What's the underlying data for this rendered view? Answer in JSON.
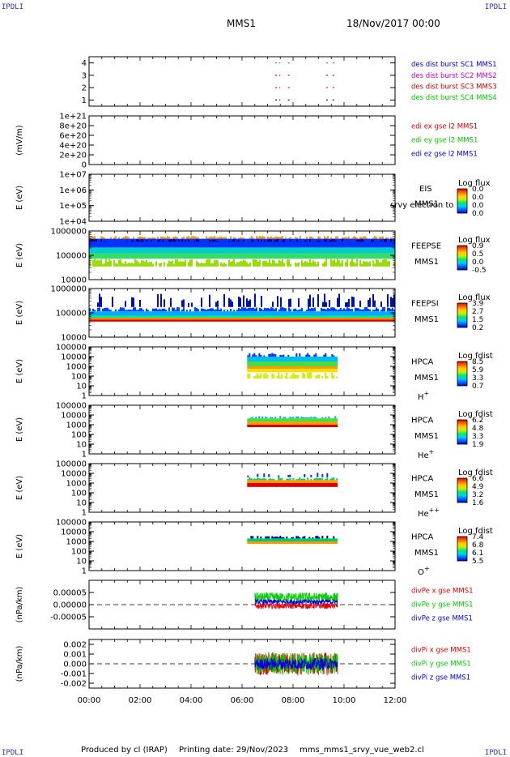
{
  "header": {
    "corner_tl": "IPDLI",
    "corner_tr": "IPDLI",
    "corner_bl": "IPDLI",
    "corner_br": "IPDLI",
    "spacecraft": "MMS1",
    "date": "18/Nov/2017 00:00"
  },
  "footer": {
    "produced": "Produced by cl (IRAP)",
    "printed": "Printing date: 29/Nov/2023",
    "file": "mms_mms1_srvy_vue_web2.cl"
  },
  "colors": {
    "red": "#e00000",
    "green": "#00cc00",
    "blue": "#0000dd",
    "magenta": "#cc00cc",
    "darkred": "#cc0000",
    "darkblue": "#000080"
  },
  "chart_data": {
    "type": "heatmap",
    "x_axis": {
      "range": [
        "00:00",
        "12:00"
      ],
      "tick_labels": [
        "00:00",
        "02:00",
        "04:00",
        "06:00",
        "08:00",
        "10:00",
        "12:00"
      ]
    },
    "panels": [
      {
        "id": "burst",
        "kind": "flags",
        "y_ticks": [
          "1",
          "2",
          "3",
          "4"
        ],
        "ylim": [
          0.5,
          4.5
        ],
        "legend": [
          {
            "text": "des dist burst SC1 MMS1",
            "color": "#0000dd"
          },
          {
            "text": "des dist burst SC2 MMS2",
            "color": "#cc00cc"
          },
          {
            "text": "des dist burst SC3 MMS3",
            "color": "#cc0000"
          },
          {
            "text": "des dist burst SC4 MMS4",
            "color": "#00cc00"
          }
        ],
        "series": [
          {
            "name": "SC1",
            "level": 1,
            "intervals": [
              [
                7.3,
                7.5
              ],
              [
                7.8,
                7.9
              ],
              [
                9.3,
                9.4
              ],
              [
                9.55,
                9.65
              ]
            ]
          },
          {
            "name": "SC2",
            "level": 2,
            "intervals": [
              [
                7.3,
                7.5
              ],
              [
                7.8,
                7.9
              ],
              [
                9.3,
                9.4
              ],
              [
                9.55,
                9.65
              ]
            ]
          },
          {
            "name": "SC3",
            "level": 3,
            "intervals": [
              [
                7.3,
                7.5
              ],
              [
                7.8,
                7.9
              ],
              [
                9.3,
                9.4
              ],
              [
                9.55,
                9.65
              ]
            ]
          },
          {
            "name": "SC4",
            "level": 4,
            "intervals": [
              [
                7.3,
                7.5
              ],
              [
                7.8,
                7.9
              ],
              [
                9.3,
                9.4
              ],
              [
                9.55,
                9.65
              ]
            ]
          }
        ]
      },
      {
        "id": "edi",
        "kind": "lines",
        "ylabel": "(mV/m)",
        "y_ticks": [
          "0",
          "2e+20",
          "4e+20",
          "6e+20",
          "8e+20",
          "1e+21"
        ],
        "ylim": [
          0,
          1e+21
        ],
        "zero_line": true,
        "legend": [
          {
            "text": "edi ex gse l2 MMS1",
            "color": "#e00000"
          },
          {
            "text": "edi ey gse l2 MMS1",
            "color": "#00cc00"
          },
          {
            "text": "edi ez gse l2 MMS1",
            "color": "#0000dd"
          }
        ]
      },
      {
        "id": "eis",
        "kind": "spectrogram",
        "ylabel": "E (eV)",
        "y_ticks": [
          "1e+04",
          "1e+05",
          "1e+06",
          "1e+07"
        ],
        "labels": [
          "EIS",
          "MMS1"
        ],
        "overlay_text": "srvy electron to",
        "colorbar": {
          "title": "Log flux",
          "ticks": [
            "0.0",
            "0.0",
            "0.0",
            "0.0"
          ]
        },
        "bands": []
      },
      {
        "id": "feepse",
        "kind": "spectrogram",
        "ylabel": "E (eV)",
        "y_ticks": [
          "10000",
          "100000",
          "1000000"
        ],
        "labels": [
          "FEEPSE",
          "MMS1"
        ],
        "colorbar": {
          "title": "Log flux",
          "ticks": [
            "0.9",
            "0.5",
            "0.0",
            "-0.5"
          ]
        },
        "bands": [
          {
            "t0": 0.0,
            "t1": 12.0,
            "y0": 0.84,
            "y1": 0.9,
            "color": "#ff9900",
            "density": 0.7
          },
          {
            "t0": 0.0,
            "t1": 12.0,
            "y0": 0.66,
            "y1": 0.84,
            "color": "#0033ff"
          },
          {
            "t0": 0.0,
            "t1": 12.0,
            "y0": 0.54,
            "y1": 0.66,
            "color": "#00cccc"
          },
          {
            "t0": 0.0,
            "t1": 12.0,
            "y0": 0.43,
            "y1": 0.54,
            "color": "#33dd66"
          },
          {
            "t0": 0.0,
            "t1": 12.0,
            "y0": 0.27,
            "y1": 0.43,
            "color": "#99dd00",
            "density": 0.85
          },
          {
            "t0": 0.0,
            "t1": 12.0,
            "y0": 0.78,
            "y1": 0.84,
            "color": "#1a0080",
            "density": 0.4
          }
        ]
      },
      {
        "id": "feepsi",
        "kind": "spectrogram",
        "ylabel": "E (eV)",
        "y_ticks": [
          "10000",
          "100000",
          "1000000"
        ],
        "labels": [
          "FEEPSI",
          "MMS1"
        ],
        "colorbar": {
          "title": "Log flux",
          "ticks": [
            "3.9",
            "2.7",
            "1.5",
            "0.2"
          ]
        },
        "bands": [
          {
            "t0": 0.0,
            "t1": 12.0,
            "y0": 0.62,
            "y1": 0.9,
            "color": "#0011aa",
            "density": 0.35
          },
          {
            "t0": 0.0,
            "t1": 12.0,
            "y0": 0.53,
            "y1": 0.62,
            "color": "#0044ff",
            "density": 0.8
          },
          {
            "t0": 0.0,
            "t1": 12.0,
            "y0": 0.44,
            "y1": 0.53,
            "color": "#00aaff"
          },
          {
            "t0": 0.0,
            "t1": 12.0,
            "y0": 0.4,
            "y1": 0.44,
            "color": "#00ee88"
          },
          {
            "t0": 0.0,
            "t1": 12.0,
            "y0": 0.36,
            "y1": 0.4,
            "color": "#ff8800"
          },
          {
            "t0": 0.0,
            "t1": 12.0,
            "y0": 0.32,
            "y1": 0.36,
            "color": "#dd0000"
          }
        ]
      },
      {
        "id": "hpca_h",
        "kind": "spectrogram",
        "ylabel": "E (eV)",
        "y_ticks": [
          "1",
          "10",
          "100",
          "1000",
          "10000",
          "100000"
        ],
        "labels": [
          "HPCA",
          "MMS1",
          "H+"
        ],
        "colorbar": {
          "title": "Log fdist",
          "ticks": [
            "8.5",
            "5.9",
            "3.3",
            "0.7"
          ]
        },
        "bands": [
          {
            "t0": 6.2,
            "t1": 9.75,
            "y0": 0.8,
            "y1": 0.88,
            "color": "#0033ff",
            "density": 0.5
          },
          {
            "t0": 6.2,
            "t1": 9.75,
            "y0": 0.7,
            "y1": 0.8,
            "color": "#00bbee"
          },
          {
            "t0": 6.2,
            "t1": 9.75,
            "y0": 0.6,
            "y1": 0.7,
            "color": "#44dd44"
          },
          {
            "t0": 6.2,
            "t1": 9.75,
            "y0": 0.55,
            "y1": 0.6,
            "color": "#ff9900"
          },
          {
            "t0": 6.2,
            "t1": 9.75,
            "y0": 0.48,
            "y1": 0.55,
            "color": "#ffdd00"
          },
          {
            "t0": 6.2,
            "t1": 9.75,
            "y0": 0.35,
            "y1": 0.48,
            "color": "#ccee00",
            "density": 0.7
          }
        ]
      },
      {
        "id": "hpca_he",
        "kind": "spectrogram",
        "ylabel": "E (eV)",
        "y_ticks": [
          "1",
          "10",
          "100",
          "1000",
          "10000",
          "100000"
        ],
        "labels": [
          "HPCA",
          "MMS1",
          "He+"
        ],
        "colorbar": {
          "title": "Log fdist",
          "ticks": [
            "6.2",
            "4.8",
            "3.3",
            "1.9"
          ]
        },
        "bands": [
          {
            "t0": 6.2,
            "t1": 9.75,
            "y0": 0.73,
            "y1": 0.78,
            "color": "#00aacc",
            "density": 0.6
          },
          {
            "t0": 6.2,
            "t1": 9.75,
            "y0": 0.66,
            "y1": 0.73,
            "color": "#44dd44"
          },
          {
            "t0": 6.2,
            "t1": 9.75,
            "y0": 0.6,
            "y1": 0.66,
            "color": "#ff9900"
          },
          {
            "t0": 6.2,
            "t1": 9.75,
            "y0": 0.55,
            "y1": 0.6,
            "color": "#dd0000"
          }
        ]
      },
      {
        "id": "hpca_hepp",
        "kind": "spectrogram",
        "ylabel": "E (eV)",
        "y_ticks": [
          "1",
          "10",
          "100",
          "1000",
          "10000",
          "100000"
        ],
        "labels": [
          "HPCA",
          "MMS1",
          "He++"
        ],
        "colorbar": {
          "title": "Log fdist",
          "ticks": [
            "6.6",
            "4.9",
            "3.2",
            "1.6"
          ]
        },
        "bands": [
          {
            "t0": 6.2,
            "t1": 9.75,
            "y0": 0.72,
            "y1": 0.82,
            "color": "#0033ff",
            "density": 0.3
          },
          {
            "t0": 6.2,
            "t1": 9.75,
            "y0": 0.66,
            "y1": 0.72,
            "color": "#00cc66",
            "density": 0.8
          },
          {
            "t0": 6.2,
            "t1": 9.75,
            "y0": 0.6,
            "y1": 0.66,
            "color": "#ff9900"
          },
          {
            "t0": 6.2,
            "t1": 9.75,
            "y0": 0.52,
            "y1": 0.6,
            "color": "#dd0000"
          }
        ]
      },
      {
        "id": "hpca_o",
        "kind": "spectrogram",
        "ylabel": "E (eV)",
        "y_ticks": [
          "1",
          "10",
          "100",
          "1000",
          "10000",
          "100000"
        ],
        "labels": [
          "HPCA",
          "MMS1",
          "O+"
        ],
        "colorbar": {
          "title": "Log fdist",
          "ticks": [
            "7.4",
            "6.8",
            "6.1",
            "5.5"
          ]
        },
        "bands": [
          {
            "t0": 6.2,
            "t1": 9.75,
            "y0": 0.66,
            "y1": 0.72,
            "color": "#0000aa",
            "density": 0.5
          },
          {
            "t0": 6.2,
            "t1": 9.75,
            "y0": 0.6,
            "y1": 0.66,
            "color": "#00cc66"
          },
          {
            "t0": 6.2,
            "t1": 9.75,
            "y0": 0.55,
            "y1": 0.6,
            "color": "#ff9900"
          }
        ]
      },
      {
        "id": "divpe",
        "kind": "lines",
        "ylabel": "(nPa/km)",
        "y_ticks": [
          "-0.00005",
          "0.00000",
          "0.00005"
        ],
        "ylim": [
          -0.0001,
          0.0001
        ],
        "zero_line": true,
        "legend": [
          {
            "text": "divPe x gse MMS1",
            "color": "#e00000"
          },
          {
            "text": "divPe y gse MMS1",
            "color": "#00cc00"
          },
          {
            "text": "divPe z gse MMS1",
            "color": "#0000dd"
          }
        ],
        "series": [
          {
            "name": "divPe x gse MMS1",
            "t0": 6.5,
            "t1": 9.75,
            "mean": -5e-06,
            "amp": 1.2e-05
          },
          {
            "name": "divPe y gse MMS1",
            "t0": 6.5,
            "t1": 9.75,
            "mean": 3e-05,
            "amp": 2e-05
          },
          {
            "name": "divPe z gse MMS1",
            "t0": 6.5,
            "t1": 9.75,
            "mean": 1.2e-05,
            "amp": 1e-05
          }
        ]
      },
      {
        "id": "divpi",
        "kind": "lines",
        "ylabel": "(nPa/km)",
        "y_ticks": [
          "-0.002",
          "-0.001",
          "0.000",
          "0.001",
          "0.002"
        ],
        "ylim": [
          -0.0025,
          0.0025
        ],
        "zero_line": true,
        "legend": [
          {
            "text": "divPi x gse MMS1",
            "color": "#e00000"
          },
          {
            "text": "divPi y gse MMS1",
            "color": "#00cc00"
          },
          {
            "text": "divPi z gse MMS1",
            "color": "#0000dd"
          }
        ],
        "series": [
          {
            "name": "divPi x gse MMS1",
            "t0": 6.5,
            "t1": 9.75,
            "mean": 0.0,
            "amp": 0.0012
          },
          {
            "name": "divPi y gse MMS1",
            "t0": 6.5,
            "t1": 9.75,
            "mean": 0.0,
            "amp": 0.0011
          },
          {
            "name": "divPi z gse MMS1",
            "t0": 6.5,
            "t1": 9.75,
            "mean": 0.0,
            "amp": 0.0006
          }
        ]
      }
    ]
  }
}
